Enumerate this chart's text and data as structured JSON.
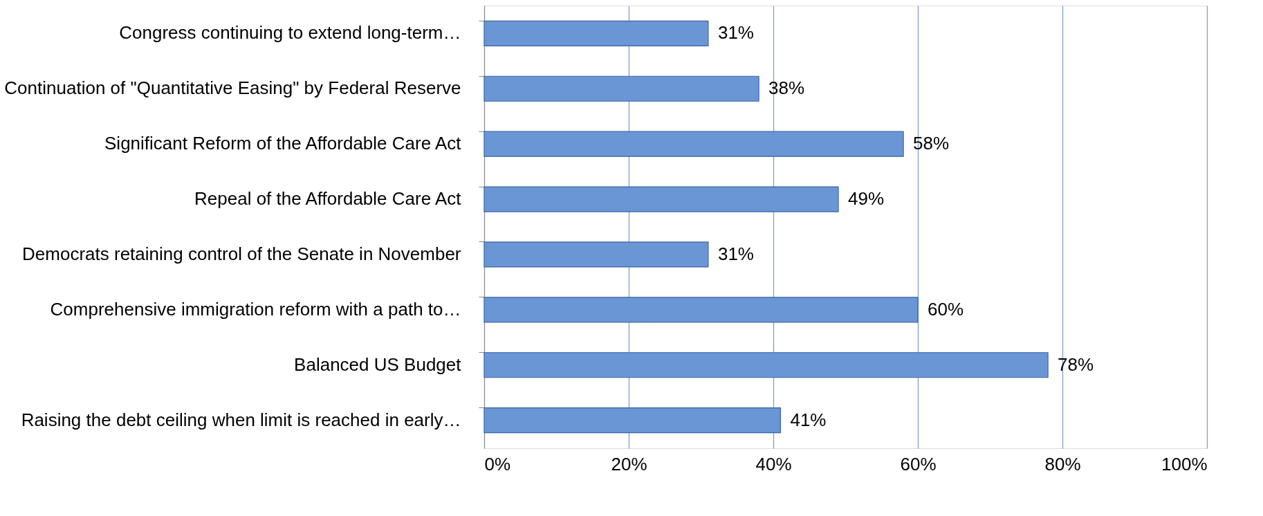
{
  "chart_data": {
    "type": "bar",
    "orientation": "horizontal",
    "categories": [
      "Congress continuing to extend long-term…",
      "Continuation of \"Quantitative Easing\" by Federal Reserve",
      "Significant Reform of the Affordable Care Act",
      "Repeal of the Affordable Care Act",
      "Democrats retaining control of the Senate in November",
      "Comprehensive immigration reform with a path to…",
      "Balanced US Budget",
      "Raising the debt ceiling when limit is reached in early…"
    ],
    "values": [
      31,
      38,
      58,
      49,
      31,
      60,
      78,
      41
    ],
    "value_labels": [
      "31%",
      "38%",
      "58%",
      "49%",
      "31%",
      "60%",
      "78%",
      "41%"
    ],
    "color": "#6b96d6",
    "xlim": [
      0,
      100
    ],
    "xticks": [
      {
        "value": 0,
        "label": "0%"
      },
      {
        "value": 20,
        "label": "20%"
      },
      {
        "value": 40,
        "label": "40%"
      },
      {
        "value": 60,
        "label": "60%"
      },
      {
        "value": 80,
        "label": "80%"
      },
      {
        "value": 100,
        "label": "100%"
      }
    ],
    "grid": "x"
  }
}
